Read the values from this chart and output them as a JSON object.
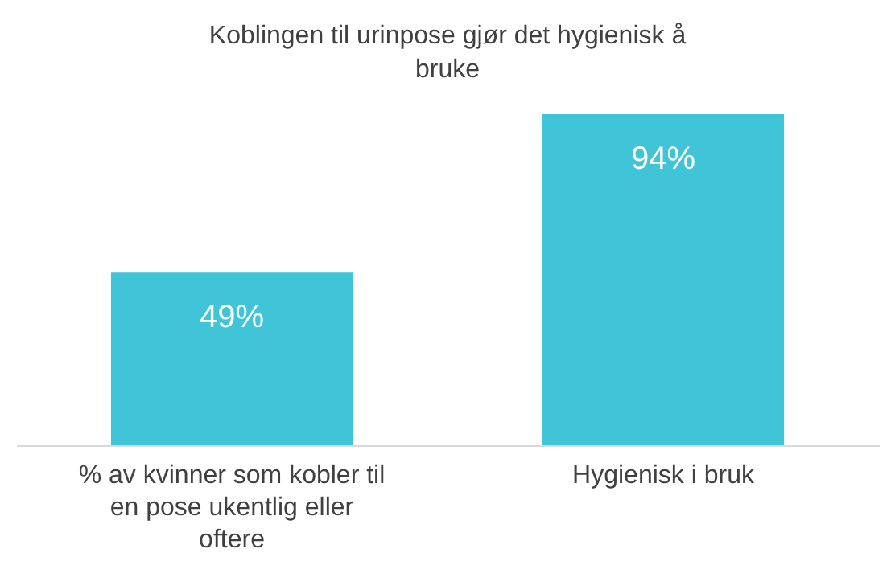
{
  "chart_data": {
    "type": "bar",
    "title": "Koblingen til urinpose gjør det hygienisk å bruke",
    "categories": [
      "% av kvinner som kobler til en pose ukentlig eller oftere",
      "Hygienisk i bruk"
    ],
    "values": [
      49,
      94
    ],
    "value_labels": [
      "49%",
      "94%"
    ],
    "color": "#40c4d8",
    "grid": false,
    "tick_labels": "x"
  }
}
